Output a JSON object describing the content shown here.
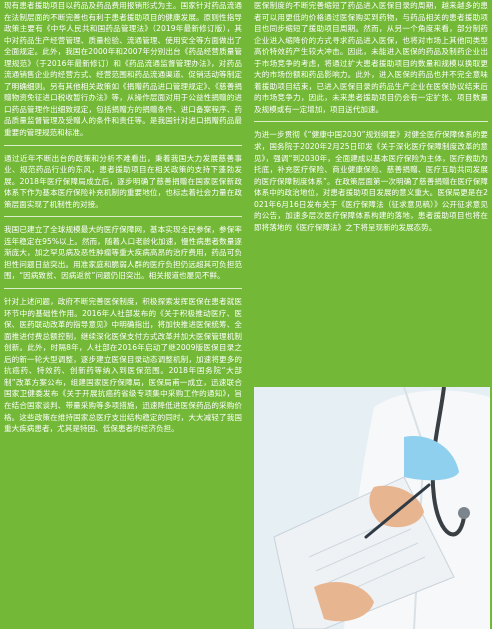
{
  "left_column": {
    "paragraphs": [
      "现有患者援助项目以药品及药品费用报销形式为主。国家针对药品流通在法制层面的不断完善也有利于患者援助项目的健康发展。原则性指导政策主要有《中华人民共和国药品管理法》（2019年最新修订版），其中对药品生产经营管理、质量检验、流通管理、使用安全等方面做出了全面规定。此外，我国在2000年和2007年分别出台《药品经营质量管理规范》（于2016年最新修订）和《药品流通监督管理办法》，对药品流通销售企业的经营方式、经营范围和药品流通渠道、促销活动等制定了明确细则。另有其他相关政策如《捐赠药品进口管理规定》、《慈善捐赠物资免征进口税收暂行办法》等，从操作层面对用于公益性捐赠的进口药品管理作出细致规定，包括捐赠方的捐赠条件、进口备案程序、药品质量监督管理及受赠人的条件和责任等。是我国针对进口捐赠药品最重要的管理规范和标准。",
      "通过近年不断出台的政策和分析不难看出，秉着我国大力发展慈善事业、规范药品行业的东风，患者援助项目在相关政策的支持下蓬勃发展。2018年医疗保障局成立后，逐步明确了慈善捐赠在国家医保新政体系下作为基本医疗保险补充机制的重要地位，也标志着社会力量在政策层面实现了机制性的对接。",
      "我国已建立了全球规模最大的医疗保障网，基本实现全民参保，参保率连年稳定在95%以上。然而，随着人口老龄化加速，慢性病患者数量逐渐庞大，加之罕见病及恶性肿瘤等重大疾病高昂的治疗费用，药品可负担性问题日益突出。用准家庭和脆弱人群的医疗负担仍远超其可负担范围，“因病致贫、因病返贫”问题仍旧突出。相关报道也屡见不鲜。",
      "针对上述问题，政府不断完善医保制度，积极探索发挥医保在患者就医环节中的基础性作用。2016年人社部发布的《关于积极推动医疗、医保、医药联动改革的指导意见》中明确指出，将加快推进医保统筹、全面推进付费总额控制，继续深化医保支付方式改革并加大医保管理机制创新。此外，时隔8年，人社部在2016年启动了继2009版医保目录之后的新一轮大型调整，逐步建立医保目录动态调整机制，加速将更多的抗癌药、特效药、创新药等纳入到医保范围。2018年国务院“大部制”改革方案公布，组建国家医疗保障局，医保局甫一成立，迅速联合国家卫健委发布《关于开展抗癌药省级专项集中采购工作的通知》，旨在结合国家谈判、带量采购等多项措施，迅速降低进医保药品的采购价格。这些政策在维持国家总医疗支出结构稳定的同时，大大减轻了我国重大疾病患者，尤其是特困、低保患者的经济负担。"
    ]
  },
  "right_column": {
    "paragraphs": [
      "医保制度的不断完善缩短了药品进入医保目录的周期，越来越多的患者可以用更低的价格通过医保购买到药物，与药品相关的患者援助项目也同步缩短了援助项目周期。然而，从另一个角度来看，部分制药企业进入缩降价的方式寻求药品进入医保，也将对市场上其他同类型高价特效药产生较大冲击。因此，未能进入医保的药品及制药企业出于市场竞争的考虑，将通过扩大患者援助项目的数量和规模以换取更大的市场份额和药品影响力。此外，进入医保的药品也并不完全意味着援助项目结束，已进入医保目录的药品生产企业在医保协议结束后的市场竞争力，因此，未来患者援助项目仍会有一定扩张、项目数量及规模或有一定增加，项目送代加速。",
      "为进一步贯彻《“健康中国2030”规划纲要》对健全医疗保障体系的要求，国务院于2020年2月25日印发《关于深化医疗保障制度改革的意见》，强调“到2030年，全面建成以基本医疗保险为主体，医疗救助为托底，补充医疗保险、商业健康保险、慈善捐赠、医疗互助共同发展的医疗保障制度体系”。在政策层面第一次明确了慈善捐赠在医疗保障体系中的政治地位，对患者援助项目发展的意义重大。医保局更是在2021年6月16日发布关于《医疗保障法（征求意见稿）》公开征求意见的公告，加速多层次医疗保障体系构建的落地，患者援助项目也将在即将落地的《医疗保障法》之下将呈现新的发展态势。"
    ]
  },
  "photo": {
    "icon": "doctor-writing-photo",
    "colors": {
      "coat": "#f4f7fa",
      "glove": "#8fd0ee",
      "skin": "#e8b591",
      "clipboard": "#e9eef2"
    }
  }
}
